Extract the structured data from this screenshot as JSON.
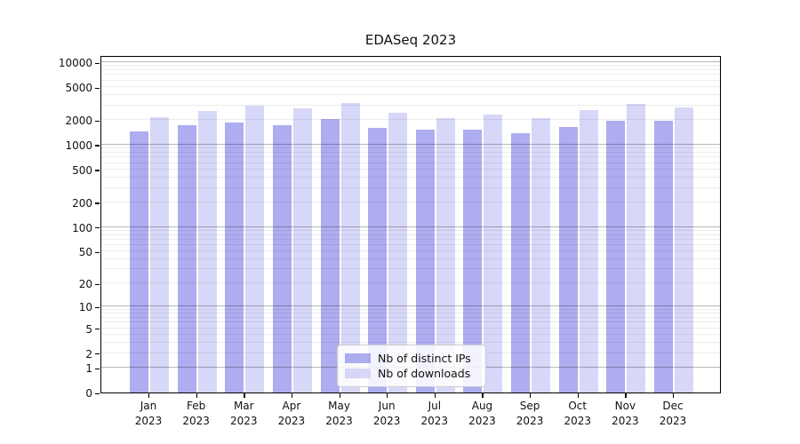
{
  "chart_data": {
    "type": "bar",
    "title": "EDASeq 2023",
    "xlabel": "",
    "ylabel": "",
    "yscale": "log10(value+1)",
    "ylim": [
      0,
      12200
    ],
    "grid": true,
    "legend_position": "lower center",
    "categories": [
      "Jan",
      "Feb",
      "Mar",
      "Apr",
      "May",
      "Jun",
      "Jul",
      "Aug",
      "Sep",
      "Oct",
      "Nov",
      "Dec"
    ],
    "category_year": "2023",
    "ytick_values": [
      10000,
      5000,
      2000,
      1000,
      500,
      200,
      100,
      50,
      20,
      10,
      5,
      2,
      1,
      0
    ],
    "ytick_labels": [
      "10000",
      "5000",
      "2000",
      "1000",
      "500",
      "200",
      "100",
      "50",
      "20",
      "10",
      "5",
      "2",
      "1",
      "0"
    ],
    "series": [
      {
        "name": "Nb of distinct IPs",
        "color": "#7a7ae6",
        "alpha": 0.62,
        "values": [
          1440,
          1740,
          1860,
          1715,
          2040,
          1600,
          1520,
          1540,
          1390,
          1630,
          1970,
          1940
        ]
      },
      {
        "name": "Nb of downloads",
        "color": "#c9c9f5",
        "alpha": 0.75,
        "values": [
          2140,
          2560,
          2980,
          2740,
          3230,
          2430,
          2090,
          2320,
          2090,
          2630,
          3160,
          2860
        ]
      }
    ]
  }
}
